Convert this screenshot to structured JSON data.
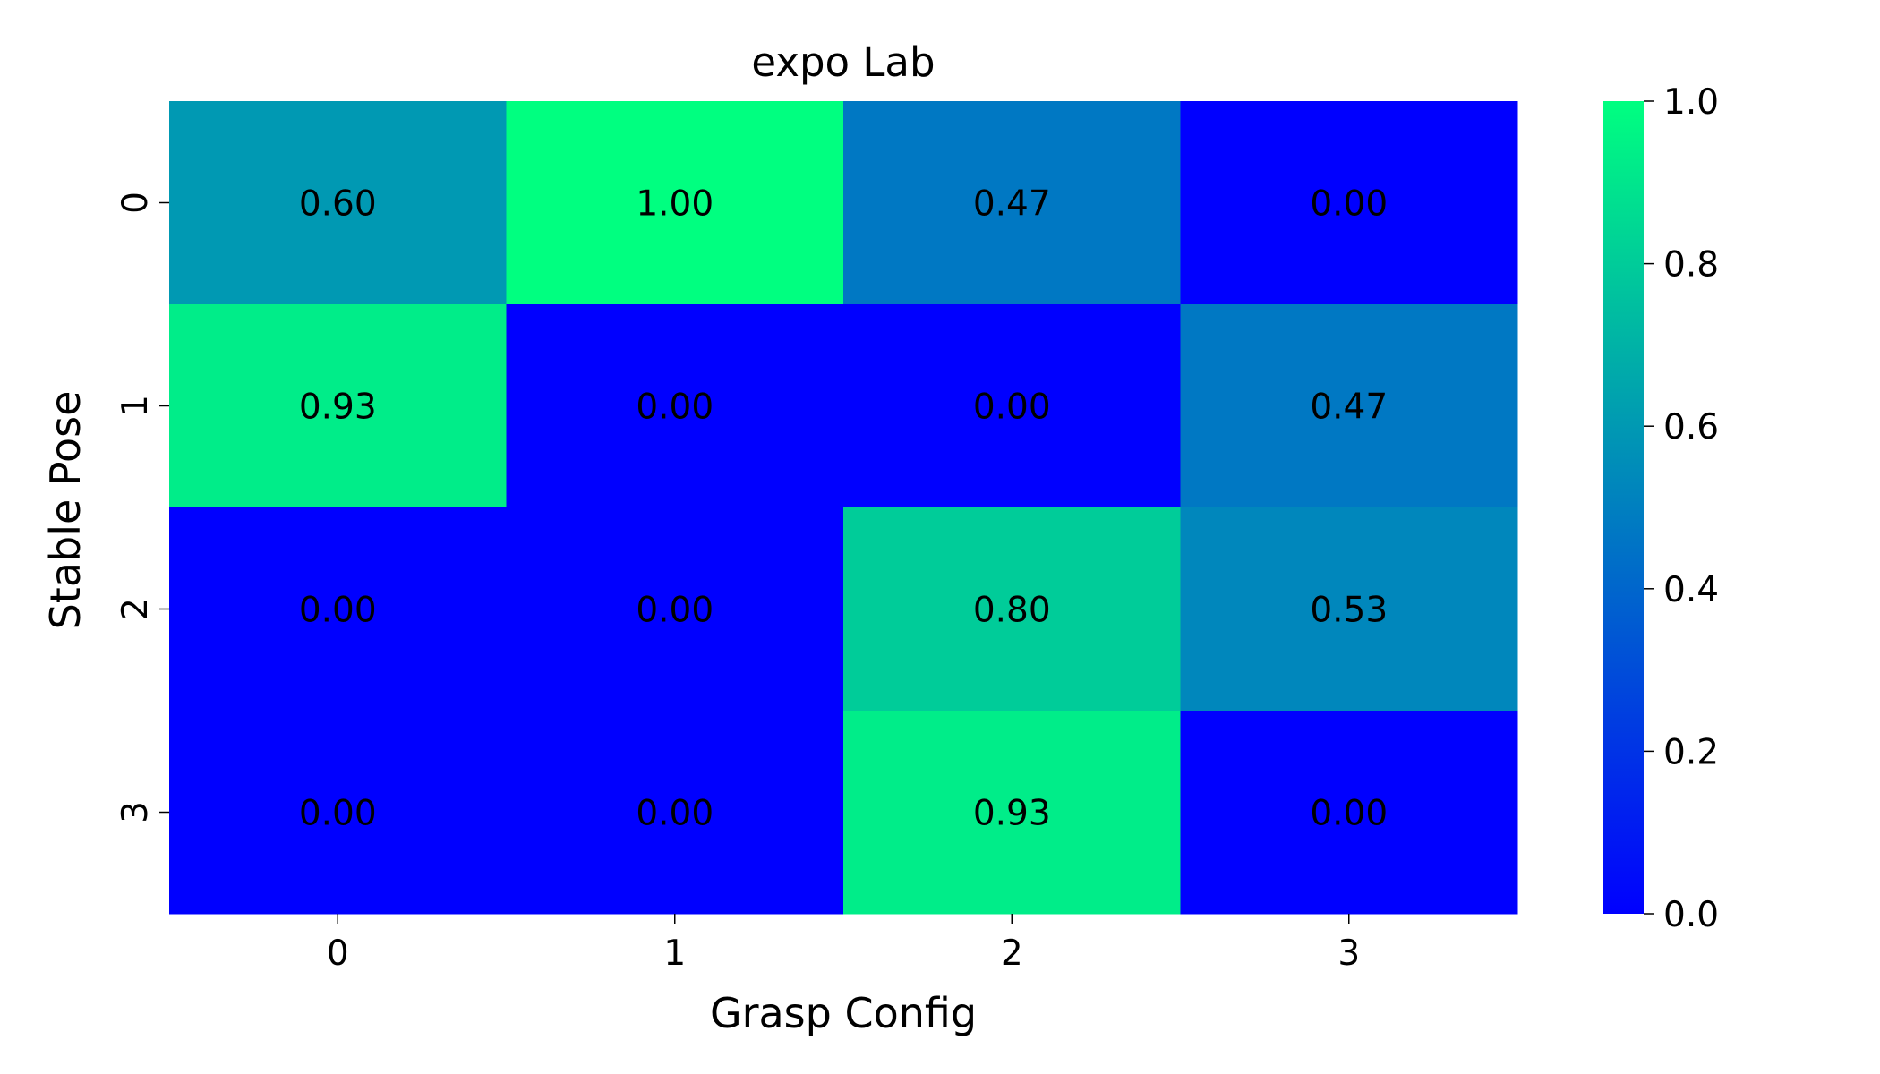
{
  "chart_data": {
    "type": "heatmap",
    "title": "expo Lab",
    "xlabel": "Grasp Config",
    "ylabel": "Stable Pose",
    "x_categories": [
      "0",
      "1",
      "2",
      "3"
    ],
    "y_categories": [
      "0",
      "1",
      "2",
      "3"
    ],
    "values": [
      [
        0.6,
        1.0,
        0.47,
        0.0
      ],
      [
        0.93,
        0.0,
        0.0,
        0.47
      ],
      [
        0.0,
        0.0,
        0.8,
        0.53
      ],
      [
        0.0,
        0.0,
        0.93,
        0.0
      ]
    ],
    "cell_labels": [
      [
        "0.60",
        "1.00",
        "0.47",
        "0.00"
      ],
      [
        "0.93",
        "0.00",
        "0.00",
        "0.47"
      ],
      [
        "0.00",
        "0.00",
        "0.80",
        "0.53"
      ],
      [
        "0.00",
        "0.00",
        "0.93",
        "0.00"
      ]
    ],
    "colormap": "winter",
    "colormap_low": "#0000ff",
    "colormap_high": "#00ff80",
    "vmin": 0.0,
    "vmax": 1.0,
    "colorbar_ticks": [
      0.0,
      0.2,
      0.4,
      0.6,
      0.8,
      1.0
    ],
    "colorbar_tick_labels": [
      "0.0",
      "0.2",
      "0.4",
      "0.6",
      "0.8",
      "1.0"
    ],
    "legend": "colorbar-right",
    "grid": false
  }
}
